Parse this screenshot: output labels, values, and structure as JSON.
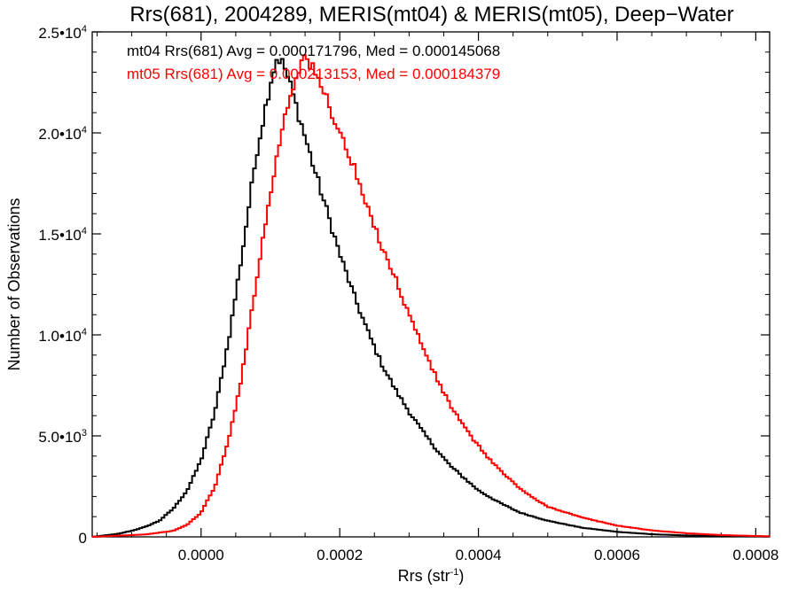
{
  "chart_data": {
    "type": "histogram",
    "title": "Rrs(681), 2004289, MERIS(mt04) & MERIS(mt05), Deep−Water",
    "xlabel_main": "Rrs (str",
    "xlabel_sup": "-1",
    "xlabel_close": ")",
    "ylabel": "Number of Observations",
    "xlim": [
      -0.000157,
      0.00082
    ],
    "ylim": [
      0,
      25000
    ],
    "x_ticks": [
      {
        "value": 0.0,
        "label": "0.0000"
      },
      {
        "value": 0.0002,
        "label": "0.0002"
      },
      {
        "value": 0.0004,
        "label": "0.0004"
      },
      {
        "value": 0.0006,
        "label": "0.0006"
      },
      {
        "value": 0.0008,
        "label": "0.0008"
      }
    ],
    "y_ticks": [
      {
        "value": 0,
        "mant": "0",
        "exp": ""
      },
      {
        "value": 5000,
        "mant": "5.0•10",
        "exp": "3"
      },
      {
        "value": 10000,
        "mant": "1.0•10",
        "exp": "4"
      },
      {
        "value": 15000,
        "mant": "1.5•10",
        "exp": "4"
      },
      {
        "value": 20000,
        "mant": "2.0•10",
        "exp": "4"
      },
      {
        "value": 25000,
        "mant": "2.5•10",
        "exp": "4"
      }
    ],
    "series": [
      {
        "name": "mt04",
        "color": "#000000",
        "stats_label": "mt04 Rrs(681) Avg = 0.000171796, Med = 0.000145068",
        "points": [
          [
            -0.000157,
            0
          ],
          [
            -0.00012,
            150
          ],
          [
            -0.0001,
            300
          ],
          [
            -8e-05,
            500
          ],
          [
            -6e-05,
            800
          ],
          [
            -4e-05,
            1400
          ],
          [
            -2e-05,
            2300
          ],
          [
            0.0,
            3800
          ],
          [
            2e-05,
            6200
          ],
          [
            4e-05,
            9800
          ],
          [
            6e-05,
            14200
          ],
          [
            8e-05,
            19000
          ],
          [
            0.0001,
            22500
          ],
          [
            0.00011,
            23800
          ],
          [
            0.00012,
            23300
          ],
          [
            0.00013,
            22200
          ],
          [
            0.00014,
            21000
          ],
          [
            0.00015,
            19800
          ],
          [
            0.00016,
            18600
          ],
          [
            0.00018,
            16300
          ],
          [
            0.0002,
            14000
          ],
          [
            0.00022,
            12000
          ],
          [
            0.00024,
            10200
          ],
          [
            0.00026,
            8600
          ],
          [
            0.00028,
            7300
          ],
          [
            0.0003,
            6200
          ],
          [
            0.00032,
            5200
          ],
          [
            0.00034,
            4300
          ],
          [
            0.00036,
            3500
          ],
          [
            0.00038,
            2900
          ],
          [
            0.0004,
            2300
          ],
          [
            0.00043,
            1700
          ],
          [
            0.00046,
            1200
          ],
          [
            0.0005,
            800
          ],
          [
            0.00055,
            450
          ],
          [
            0.0006,
            250
          ],
          [
            0.00065,
            130
          ],
          [
            0.0007,
            70
          ],
          [
            0.00075,
            40
          ],
          [
            0.00082,
            15
          ]
        ]
      },
      {
        "name": "mt05",
        "color": "#ff0000",
        "stats_label": "mt05 Rrs(681) Avg = 0.000213153, Med = 0.000184379",
        "points": [
          [
            -0.000157,
            0
          ],
          [
            -8e-05,
            120
          ],
          [
            -4e-05,
            300
          ],
          [
            -2e-05,
            600
          ],
          [
            0.0,
            1200
          ],
          [
            2e-05,
            2500
          ],
          [
            4e-05,
            4800
          ],
          [
            6e-05,
            8200
          ],
          [
            8e-05,
            12800
          ],
          [
            0.0001,
            17000
          ],
          [
            0.00012,
            20800
          ],
          [
            0.00014,
            23200
          ],
          [
            0.00015,
            23800
          ],
          [
            0.00016,
            23200
          ],
          [
            0.00018,
            21800
          ],
          [
            0.0002,
            20000
          ],
          [
            0.00022,
            18300
          ],
          [
            0.00024,
            16200
          ],
          [
            0.00026,
            14500
          ],
          [
            0.00028,
            12800
          ],
          [
            0.0003,
            11000
          ],
          [
            0.00032,
            9400
          ],
          [
            0.00034,
            7800
          ],
          [
            0.00036,
            6500
          ],
          [
            0.00038,
            5400
          ],
          [
            0.0004,
            4500
          ],
          [
            0.00042,
            3700
          ],
          [
            0.00044,
            3000
          ],
          [
            0.00046,
            2400
          ],
          [
            0.00048,
            1900
          ],
          [
            0.0005,
            1500
          ],
          [
            0.00055,
            950
          ],
          [
            0.0006,
            560
          ],
          [
            0.00065,
            320
          ],
          [
            0.0007,
            180
          ],
          [
            0.00075,
            90
          ],
          [
            0.0008,
            45
          ],
          [
            0.00082,
            30
          ]
        ]
      }
    ]
  }
}
